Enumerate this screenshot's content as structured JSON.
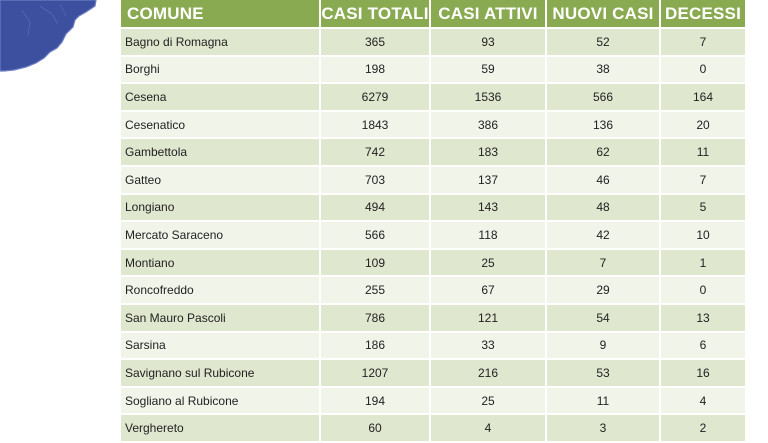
{
  "table": {
    "headers": [
      "COMUNE",
      "CASI TOTALI",
      "CASI ATTIVI",
      "NUOVI CASI",
      "DECESSI"
    ],
    "rows": [
      [
        "Bagno di Romagna",
        "365",
        "93",
        "52",
        "7"
      ],
      [
        "Borghi",
        "198",
        "59",
        "38",
        "0"
      ],
      [
        "Cesena",
        "6279",
        "1536",
        "566",
        "164"
      ],
      [
        "Cesenatico",
        "1843",
        "386",
        "136",
        "20"
      ],
      [
        "Gambettola",
        "742",
        "183",
        "62",
        "11"
      ],
      [
        "Gatteo",
        "703",
        "137",
        "46",
        "7"
      ],
      [
        "Longiano",
        "494",
        "143",
        "48",
        "5"
      ],
      [
        "Mercato Saraceno",
        "566",
        "118",
        "42",
        "10"
      ],
      [
        "Montiano",
        "109",
        "25",
        "7",
        "1"
      ],
      [
        "Roncofreddo",
        "255",
        "67",
        "29",
        "0"
      ],
      [
        "San Mauro Pascoli",
        "786",
        "121",
        "54",
        "13"
      ],
      [
        "Sarsina",
        "186",
        "33",
        "9",
        "6"
      ],
      [
        "Savignano sul Rubicone",
        "1207",
        "216",
        "53",
        "16"
      ],
      [
        "Sogliano al Rubicone",
        "194",
        "25",
        "11",
        "4"
      ],
      [
        "Verghereto",
        "60",
        "4",
        "3",
        "2"
      ]
    ]
  },
  "colors": {
    "header_bg": "#8aaa52",
    "row_odd": "#dfe7cf",
    "row_even": "#f0f4e9",
    "map_fill": "#3d4f9f"
  }
}
